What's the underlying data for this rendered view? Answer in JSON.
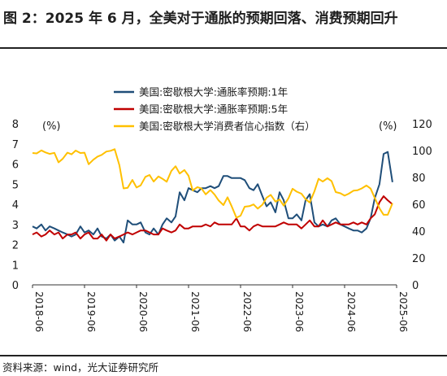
{
  "title": "图 2：2025 年 6 月，全美对于通胀的预期回落、消费预期回升",
  "source": "资料来源：wind，光大证券研究所",
  "chart_data": {
    "type": "line",
    "left_unit": "(%)",
    "right_unit": "(%)",
    "left_ylim": [
      0,
      8
    ],
    "left_yticks": [
      "0",
      "1",
      "2",
      "3",
      "4",
      "5",
      "6",
      "7",
      "8"
    ],
    "right_ylim": [
      0,
      120
    ],
    "right_yticks": [
      "0",
      "20",
      "40",
      "60",
      "80",
      "100",
      "120"
    ],
    "xlim": [
      2018.5,
      2025.5
    ],
    "xticks": [
      {
        "x": 2018.5,
        "label": "2018-06"
      },
      {
        "x": 2019.5,
        "label": "2019-06"
      },
      {
        "x": 2020.5,
        "label": "2020-06"
      },
      {
        "x": 2021.5,
        "label": "2021-06"
      },
      {
        "x": 2022.5,
        "label": "2022-06"
      },
      {
        "x": 2023.5,
        "label": "2023-06"
      },
      {
        "x": 2024.5,
        "label": "2024-06"
      },
      {
        "x": 2025.5,
        "label": "2025-06"
      }
    ],
    "legend_placement": "top-center",
    "series": [
      {
        "name": "美国:密歇根大学:通胀率预期:1年",
        "color": "#1f4e79",
        "axis": "left",
        "points": [
          [
            2018.5,
            2.9
          ],
          [
            2018.58,
            2.8
          ],
          [
            2018.67,
            3.0
          ],
          [
            2018.75,
            2.7
          ],
          [
            2018.83,
            2.9
          ],
          [
            2018.92,
            2.8
          ],
          [
            2019.0,
            2.7
          ],
          [
            2019.08,
            2.6
          ],
          [
            2019.17,
            2.5
          ],
          [
            2019.25,
            2.4
          ],
          [
            2019.33,
            2.5
          ],
          [
            2019.42,
            2.9
          ],
          [
            2019.5,
            2.6
          ],
          [
            2019.58,
            2.7
          ],
          [
            2019.67,
            2.5
          ],
          [
            2019.75,
            2.8
          ],
          [
            2019.83,
            2.4
          ],
          [
            2019.92,
            2.3
          ],
          [
            2020.0,
            2.5
          ],
          [
            2020.08,
            2.2
          ],
          [
            2020.17,
            2.4
          ],
          [
            2020.25,
            2.1
          ],
          [
            2020.33,
            3.2
          ],
          [
            2020.42,
            3.0
          ],
          [
            2020.5,
            3.0
          ],
          [
            2020.58,
            3.1
          ],
          [
            2020.67,
            2.6
          ],
          [
            2020.75,
            2.5
          ],
          [
            2020.83,
            2.8
          ],
          [
            2020.92,
            2.5
          ],
          [
            2021.0,
            3.0
          ],
          [
            2021.08,
            3.3
          ],
          [
            2021.17,
            3.1
          ],
          [
            2021.25,
            3.4
          ],
          [
            2021.33,
            4.6
          ],
          [
            2021.42,
            4.2
          ],
          [
            2021.5,
            4.8
          ],
          [
            2021.58,
            4.7
          ],
          [
            2021.67,
            4.6
          ],
          [
            2021.75,
            4.8
          ],
          [
            2021.83,
            4.8
          ],
          [
            2021.92,
            4.9
          ],
          [
            2022.0,
            4.8
          ],
          [
            2022.08,
            4.9
          ],
          [
            2022.17,
            5.4
          ],
          [
            2022.25,
            5.4
          ],
          [
            2022.33,
            5.3
          ],
          [
            2022.42,
            5.3
          ],
          [
            2022.5,
            5.3
          ],
          [
            2022.58,
            5.2
          ],
          [
            2022.67,
            4.8
          ],
          [
            2022.75,
            4.7
          ],
          [
            2022.83,
            5.0
          ],
          [
            2022.92,
            4.4
          ],
          [
            2023.0,
            3.9
          ],
          [
            2023.08,
            4.1
          ],
          [
            2023.17,
            3.6
          ],
          [
            2023.25,
            4.6
          ],
          [
            2023.33,
            4.2
          ],
          [
            2023.42,
            3.3
          ],
          [
            2023.5,
            3.3
          ],
          [
            2023.58,
            3.5
          ],
          [
            2023.67,
            3.2
          ],
          [
            2023.75,
            4.2
          ],
          [
            2023.83,
            4.5
          ],
          [
            2023.92,
            3.1
          ],
          [
            2024.0,
            2.9
          ],
          [
            2024.08,
            3.0
          ],
          [
            2024.17,
            2.9
          ],
          [
            2024.25,
            3.2
          ],
          [
            2024.33,
            3.3
          ],
          [
            2024.42,
            3.0
          ],
          [
            2024.5,
            2.9
          ],
          [
            2024.58,
            2.8
          ],
          [
            2024.67,
            2.7
          ],
          [
            2024.75,
            2.7
          ],
          [
            2024.83,
            2.6
          ],
          [
            2024.92,
            2.8
          ],
          [
            2025.0,
            3.3
          ],
          [
            2025.08,
            4.3
          ],
          [
            2025.17,
            5.0
          ],
          [
            2025.25,
            6.5
          ],
          [
            2025.33,
            6.6
          ],
          [
            2025.42,
            5.1
          ]
        ]
      },
      {
        "name": "美国:密歇根大学:通胀率预期:5年",
        "color": "#c00000",
        "axis": "left",
        "points": [
          [
            2018.5,
            2.5
          ],
          [
            2018.58,
            2.6
          ],
          [
            2018.67,
            2.4
          ],
          [
            2018.75,
            2.5
          ],
          [
            2018.83,
            2.7
          ],
          [
            2018.92,
            2.5
          ],
          [
            2019.0,
            2.6
          ],
          [
            2019.08,
            2.3
          ],
          [
            2019.17,
            2.5
          ],
          [
            2019.25,
            2.5
          ],
          [
            2019.33,
            2.6
          ],
          [
            2019.42,
            2.3
          ],
          [
            2019.5,
            2.5
          ],
          [
            2019.58,
            2.6
          ],
          [
            2019.67,
            2.3
          ],
          [
            2019.75,
            2.3
          ],
          [
            2019.83,
            2.5
          ],
          [
            2019.92,
            2.2
          ],
          [
            2020.0,
            2.5
          ],
          [
            2020.08,
            2.3
          ],
          [
            2020.17,
            2.4
          ],
          [
            2020.25,
            2.5
          ],
          [
            2020.33,
            2.6
          ],
          [
            2020.42,
            2.5
          ],
          [
            2020.5,
            2.6
          ],
          [
            2020.58,
            2.7
          ],
          [
            2020.67,
            2.7
          ],
          [
            2020.75,
            2.6
          ],
          [
            2020.83,
            2.5
          ],
          [
            2020.92,
            2.5
          ],
          [
            2021.0,
            2.8
          ],
          [
            2021.08,
            2.7
          ],
          [
            2021.17,
            2.6
          ],
          [
            2021.25,
            2.7
          ],
          [
            2021.33,
            3.0
          ],
          [
            2021.42,
            2.8
          ],
          [
            2021.5,
            2.8
          ],
          [
            2021.58,
            2.9
          ],
          [
            2021.67,
            2.9
          ],
          [
            2021.75,
            2.9
          ],
          [
            2021.83,
            3.0
          ],
          [
            2021.92,
            2.9
          ],
          [
            2022.0,
            3.1
          ],
          [
            2022.08,
            3.0
          ],
          [
            2022.17,
            3.0
          ],
          [
            2022.25,
            3.0
          ],
          [
            2022.33,
            3.0
          ],
          [
            2022.42,
            3.3
          ],
          [
            2022.5,
            2.9
          ],
          [
            2022.58,
            2.9
          ],
          [
            2022.67,
            2.7
          ],
          [
            2022.75,
            2.9
          ],
          [
            2022.83,
            3.0
          ],
          [
            2022.92,
            2.9
          ],
          [
            2023.0,
            2.9
          ],
          [
            2023.08,
            2.9
          ],
          [
            2023.17,
            2.9
          ],
          [
            2023.25,
            3.0
          ],
          [
            2023.33,
            3.1
          ],
          [
            2023.42,
            3.0
          ],
          [
            2023.5,
            3.0
          ],
          [
            2023.58,
            3.0
          ],
          [
            2023.67,
            2.8
          ],
          [
            2023.75,
            3.0
          ],
          [
            2023.83,
            3.2
          ],
          [
            2023.92,
            2.9
          ],
          [
            2024.0,
            2.9
          ],
          [
            2024.08,
            3.2
          ],
          [
            2024.17,
            2.9
          ],
          [
            2024.25,
            3.0
          ],
          [
            2024.33,
            3.1
          ],
          [
            2024.42,
            3.0
          ],
          [
            2024.5,
            3.0
          ],
          [
            2024.58,
            3.0
          ],
          [
            2024.67,
            3.1
          ],
          [
            2024.75,
            3.0
          ],
          [
            2024.83,
            3.1
          ],
          [
            2024.92,
            3.0
          ],
          [
            2025.0,
            3.3
          ],
          [
            2025.08,
            3.5
          ],
          [
            2025.17,
            4.1
          ],
          [
            2025.25,
            4.4
          ],
          [
            2025.33,
            4.2
          ],
          [
            2025.42,
            4.0
          ]
        ]
      },
      {
        "name": "美国:密歇根大学消费者信心指数（右）",
        "color": "#ffc000",
        "axis": "right",
        "points": [
          [
            2018.5,
            98.2
          ],
          [
            2018.58,
            97.9
          ],
          [
            2018.67,
            100.1
          ],
          [
            2018.75,
            98.6
          ],
          [
            2018.83,
            97.5
          ],
          [
            2018.92,
            98.3
          ],
          [
            2019.0,
            91.2
          ],
          [
            2019.08,
            93.8
          ],
          [
            2019.17,
            98.4
          ],
          [
            2019.25,
            97.2
          ],
          [
            2019.33,
            100.0
          ],
          [
            2019.42,
            98.2
          ],
          [
            2019.5,
            98.4
          ],
          [
            2019.58,
            89.8
          ],
          [
            2019.67,
            93.2
          ],
          [
            2019.75,
            95.5
          ],
          [
            2019.83,
            96.8
          ],
          [
            2019.92,
            99.3
          ],
          [
            2020.0,
            99.8
          ],
          [
            2020.08,
            101.0
          ],
          [
            2020.17,
            89.1
          ],
          [
            2020.25,
            71.8
          ],
          [
            2020.33,
            72.3
          ],
          [
            2020.42,
            78.1
          ],
          [
            2020.5,
            72.5
          ],
          [
            2020.58,
            74.1
          ],
          [
            2020.67,
            80.4
          ],
          [
            2020.75,
            81.8
          ],
          [
            2020.83,
            76.9
          ],
          [
            2020.92,
            80.7
          ],
          [
            2021.0,
            79.0
          ],
          [
            2021.08,
            76.8
          ],
          [
            2021.17,
            84.9
          ],
          [
            2021.25,
            88.3
          ],
          [
            2021.33,
            82.9
          ],
          [
            2021.42,
            85.5
          ],
          [
            2021.5,
            81.2
          ],
          [
            2021.58,
            70.3
          ],
          [
            2021.67,
            72.8
          ],
          [
            2021.75,
            71.7
          ],
          [
            2021.83,
            67.4
          ],
          [
            2021.92,
            70.6
          ],
          [
            2022.0,
            67.2
          ],
          [
            2022.08,
            62.8
          ],
          [
            2022.17,
            59.4
          ],
          [
            2022.25,
            65.2
          ],
          [
            2022.33,
            58.4
          ],
          [
            2022.42,
            50.0
          ],
          [
            2022.5,
            51.5
          ],
          [
            2022.58,
            58.2
          ],
          [
            2022.67,
            58.6
          ],
          [
            2022.75,
            59.9
          ],
          [
            2022.83,
            56.8
          ],
          [
            2022.92,
            59.7
          ],
          [
            2023.0,
            64.9
          ],
          [
            2023.08,
            67.0
          ],
          [
            2023.17,
            62.0
          ],
          [
            2023.25,
            63.5
          ],
          [
            2023.33,
            59.0
          ],
          [
            2023.42,
            64.4
          ],
          [
            2023.5,
            71.6
          ],
          [
            2023.58,
            69.4
          ],
          [
            2023.67,
            67.9
          ],
          [
            2023.75,
            63.8
          ],
          [
            2023.83,
            61.3
          ],
          [
            2023.92,
            69.7
          ],
          [
            2024.0,
            79.0
          ],
          [
            2024.08,
            76.9
          ],
          [
            2024.17,
            79.4
          ],
          [
            2024.25,
            77.2
          ],
          [
            2024.33,
            69.1
          ],
          [
            2024.42,
            68.2
          ],
          [
            2024.5,
            66.4
          ],
          [
            2024.58,
            67.9
          ],
          [
            2024.67,
            70.1
          ],
          [
            2024.75,
            70.5
          ],
          [
            2024.83,
            71.8
          ],
          [
            2024.92,
            74.0
          ],
          [
            2025.0,
            71.7
          ],
          [
            2025.08,
            64.7
          ],
          [
            2025.17,
            57.0
          ],
          [
            2025.25,
            52.2
          ],
          [
            2025.33,
            52.2
          ],
          [
            2025.42,
            60.7
          ]
        ]
      }
    ]
  }
}
